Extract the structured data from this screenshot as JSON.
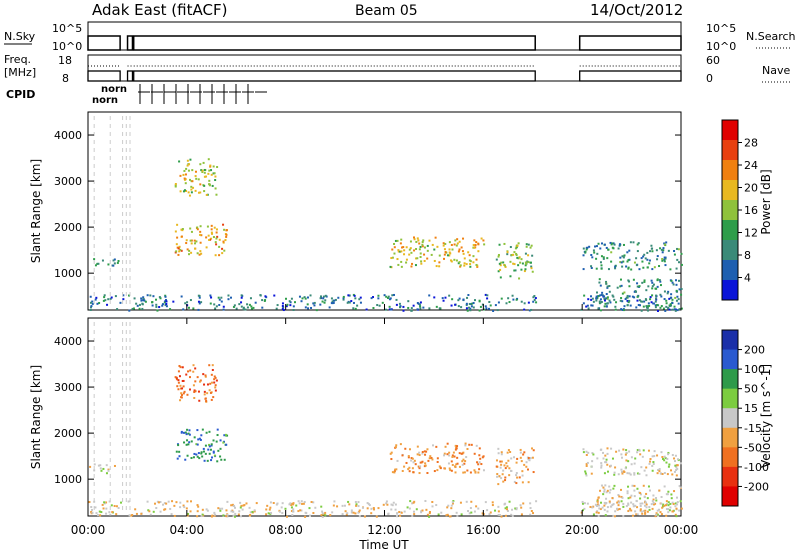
{
  "header": {
    "station": "Adak East (fitACF)",
    "beam": "Beam 05",
    "date": "14/Oct/2012"
  },
  "strip_panels": {
    "nsky": {
      "left_label": "N.Sky",
      "right_label": "N.Search",
      "left_ticks": [
        "10^5",
        "10^0"
      ],
      "right_ticks": [
        "10^5",
        "10^0"
      ]
    },
    "freq": {
      "left_label": "Freq.",
      "left_unit": "[MHz]",
      "right_label": "Nave",
      "left_ticks": [
        "18",
        "8"
      ],
      "right_ticks": [
        "60",
        "0"
      ]
    },
    "cpid": {
      "label": "CPID",
      "mode_text_a": "norn",
      "mode_text_b": "norn"
    }
  },
  "time_axis": {
    "xlabel": "Time UT",
    "ticks": [
      "00:00",
      "04:00",
      "08:00",
      "12:00",
      "16:00",
      "20:00",
      "00:00"
    ],
    "xlim_hours": [
      0,
      24
    ]
  },
  "colors": {
    "power_scale": [
      "#0a14d8",
      "#1e5fb0",
      "#3a8a78",
      "#2e9d4a",
      "#8fc23b",
      "#e8b820",
      "#f08010",
      "#e84010",
      "#e00000"
    ],
    "velocity_scale": [
      "#1a2fa8",
      "#2a5ad0",
      "#2e9a4a",
      "#7ccc40",
      "#c8c8c8",
      "#f0a040",
      "#f07020",
      "#e83010",
      "#e00000"
    ]
  },
  "chart_data": [
    {
      "type": "heatmap",
      "name": "power",
      "ylabel": "Slant Range [km]",
      "ylim": [
        200,
        4500
      ],
      "y_ticks": [
        "4000",
        "3000",
        "2000",
        "1000"
      ],
      "colorbar_label": "Power [dB]",
      "colorbar_ticks": [
        "28",
        "24",
        "20",
        "16",
        "12",
        "8",
        "4"
      ],
      "colorbar_range": [
        0,
        30
      ],
      "clusters": [
        {
          "t": [
            0.0,
            1.2
          ],
          "r": [
            1150,
            1350
          ],
          "level": 8
        },
        {
          "t": [
            3.5,
            5.2
          ],
          "r": [
            2700,
            3500
          ],
          "level": 16
        },
        {
          "t": [
            3.5,
            5.6
          ],
          "r": [
            1400,
            2100
          ],
          "level": 20
        },
        {
          "t": [
            12.2,
            16.0
          ],
          "r": [
            1150,
            1800
          ],
          "level": 18
        },
        {
          "t": [
            16.5,
            18.0
          ],
          "r": [
            900,
            1700
          ],
          "level": 14
        },
        {
          "t": [
            20.0,
            24.0
          ],
          "r": [
            1100,
            1700
          ],
          "level": 8
        },
        {
          "t": [
            20.5,
            24.0
          ],
          "r": [
            300,
            900
          ],
          "level": 8
        },
        {
          "t": [
            0.0,
            24.0
          ],
          "r": [
            200,
            550
          ],
          "level": 6
        }
      ],
      "data_gaps_hours": [
        [
          1.4,
          1.6
        ],
        [
          18.1,
          19.9
        ]
      ]
    },
    {
      "type": "heatmap",
      "name": "velocity",
      "ylabel": "Slant Range [km]",
      "ylim": [
        200,
        4500
      ],
      "y_ticks": [
        "4000",
        "3000",
        "2000",
        "1000"
      ],
      "colorbar_label": "Velocity [m s^-1]",
      "colorbar_ticks": [
        "200",
        "100",
        "50",
        "15",
        "-15",
        "-50",
        "-100",
        "-200"
      ],
      "colorbar_range": [
        -250,
        250
      ],
      "clusters": [
        {
          "t": [
            0.0,
            1.2
          ],
          "r": [
            1150,
            1350
          ],
          "velocity": 0
        },
        {
          "t": [
            3.5,
            5.2
          ],
          "r": [
            2700,
            3500
          ],
          "velocity": -120
        },
        {
          "t": [
            3.5,
            5.6
          ],
          "r": [
            1400,
            2100
          ],
          "velocity": 150
        },
        {
          "t": [
            12.2,
            16.0
          ],
          "r": [
            1150,
            1800
          ],
          "velocity": -80
        },
        {
          "t": [
            16.5,
            18.0
          ],
          "r": [
            900,
            1700
          ],
          "velocity": -60
        },
        {
          "t": [
            20.0,
            24.0
          ],
          "r": [
            1100,
            1700
          ],
          "velocity": 0
        },
        {
          "t": [
            20.5,
            24.0
          ],
          "r": [
            300,
            900
          ],
          "velocity": 0
        },
        {
          "t": [
            0.0,
            24.0
          ],
          "r": [
            200,
            550
          ],
          "velocity": -20
        }
      ],
      "data_gaps_hours": [
        [
          1.4,
          1.6
        ],
        [
          18.1,
          19.9
        ]
      ]
    }
  ]
}
